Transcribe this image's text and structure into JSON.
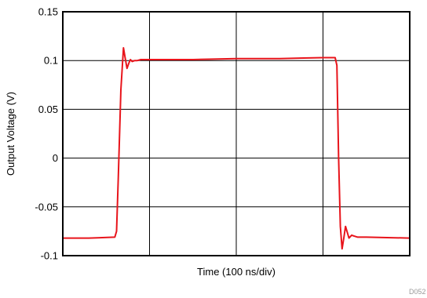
{
  "chart_data": {
    "type": "line",
    "title": "",
    "xlabel": "Time (100 ns/div)",
    "ylabel": "Output Voltage (V)",
    "ylim": [
      -0.1,
      0.15
    ],
    "yticks": [
      "0.15",
      "0.1",
      "0.05",
      "0",
      "-0.05",
      "-0.1"
    ],
    "ytick_values": [
      0.15,
      0.1,
      0.05,
      0,
      -0.05,
      -0.1
    ],
    "xlim_divisions": [
      0,
      4
    ],
    "x_gridlines": [
      1,
      2,
      3
    ],
    "grid": true,
    "figure_code": "D052",
    "series": [
      {
        "color": "#e8141b",
        "x": [
          0.0,
          0.3,
          0.6,
          0.62,
          0.64,
          0.67,
          0.7,
          0.72,
          0.74,
          0.76,
          0.78,
          0.8,
          0.83,
          0.86,
          0.9,
          1.0,
          1.5,
          2.0,
          2.5,
          3.0,
          3.1,
          3.14,
          3.16,
          3.18,
          3.2,
          3.22,
          3.24,
          3.26,
          3.28,
          3.3,
          3.33,
          3.36,
          3.4,
          3.5,
          4.0
        ],
        "y": [
          -0.082,
          -0.082,
          -0.081,
          -0.075,
          -0.02,
          0.07,
          0.113,
          0.102,
          0.092,
          0.097,
          0.101,
          0.099,
          0.1,
          0.1,
          0.101,
          0.101,
          0.101,
          0.102,
          0.102,
          0.103,
          0.103,
          0.103,
          0.095,
          0.0,
          -0.07,
          -0.093,
          -0.082,
          -0.07,
          -0.076,
          -0.082,
          -0.079,
          -0.08,
          -0.081,
          -0.081,
          -0.082
        ]
      }
    ]
  }
}
